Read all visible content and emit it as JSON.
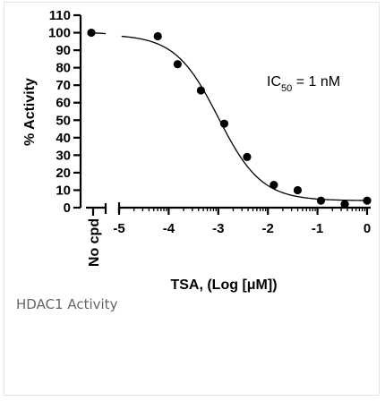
{
  "caption": "HDAC1 Activity",
  "chart_data": {
    "type": "scatter",
    "title": "",
    "xlabel": "TSA, (Log [μM])",
    "ylabel": "% Activity",
    "ylim": [
      0,
      110
    ],
    "xlim": [
      -5,
      0
    ],
    "yticks": [
      0,
      10,
      20,
      30,
      40,
      50,
      60,
      70,
      80,
      90,
      100,
      110
    ],
    "ytick_labels": [
      "0",
      "10",
      "20",
      "30",
      "40",
      "50",
      "60",
      "70",
      "80",
      "90",
      "100",
      "110"
    ],
    "xticks": [
      -5,
      -4,
      -3,
      -2,
      -1,
      0
    ],
    "xtick_labels": [
      "-5",
      "-4",
      "-3",
      "-2",
      "-1",
      "0"
    ],
    "control_label": "No cpd",
    "control_point": {
      "y": 100
    },
    "annotation": {
      "text": "IC",
      "subscript": "50",
      "suffix": " = 1 nM"
    },
    "points": [
      {
        "x": -4.22,
        "y": 98
      },
      {
        "x": -3.82,
        "y": 82
      },
      {
        "x": -3.35,
        "y": 67
      },
      {
        "x": -2.88,
        "y": 48
      },
      {
        "x": -2.42,
        "y": 29
      },
      {
        "x": -1.88,
        "y": 13
      },
      {
        "x": -1.4,
        "y": 10
      },
      {
        "x": -0.93,
        "y": 4
      },
      {
        "x": -0.45,
        "y": 2
      },
      {
        "x": 0.0,
        "y": 4
      }
    ],
    "fit": {
      "model": "four-parameter logistic",
      "top": 99,
      "bottom": 4,
      "log_ic50": -3.0,
      "hill": 1.0
    },
    "grid": false,
    "legend": "none"
  }
}
